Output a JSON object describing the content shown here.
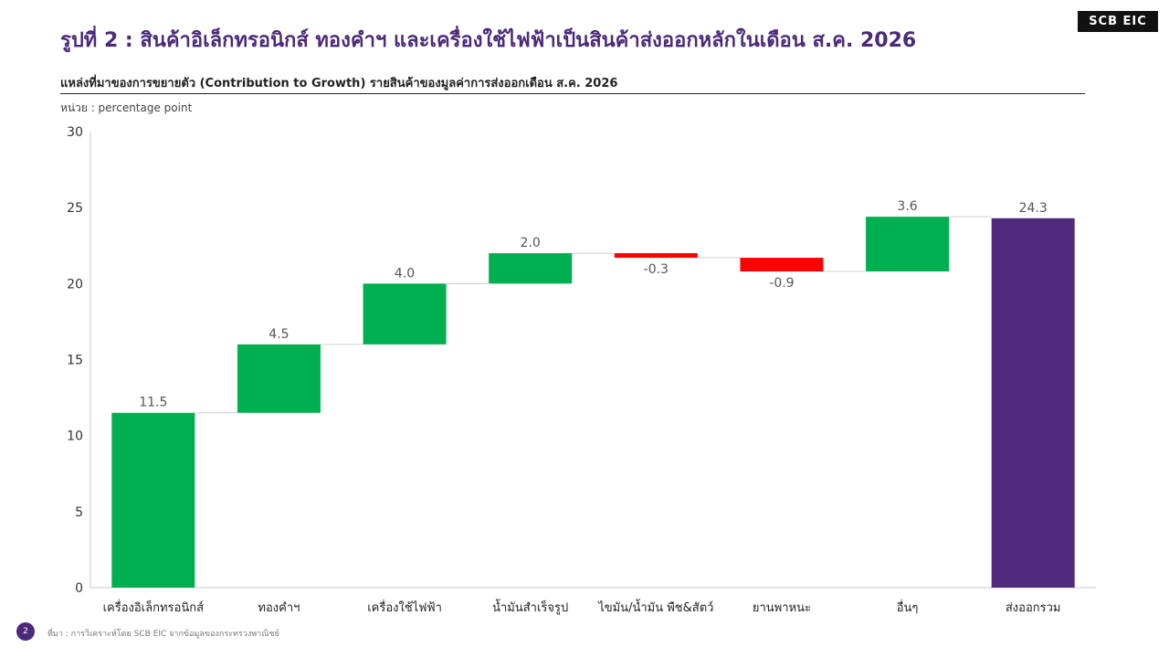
{
  "header": {
    "title": "รูปที่ 2 : สินค้าอิเล็กทรอนิกส์ ทองคำฯ และเครื่องใช้ไฟฟ้าเป็นสินค้าส่งออกหลักในเดือน ส.ค. 2026",
    "logo": "SCB EIC",
    "subtitle": "แหล่งที่มาของการขยายตัว (Contribution to Growth) รายสินค้าของมูลค่าการส่งออกเดือน ส.ค. 2026",
    "unit": "หน่วย : percentage point"
  },
  "chart_data": {
    "type": "bar",
    "subtype": "waterfall",
    "categories": [
      "เครื่องอิเล็กทรอนิกส์",
      "ทองคำฯ",
      "เครื่องใช้ไฟฟ้า",
      "น้ำมันสำเร็จรูป",
      "ไขมัน/น้ำมัน พืช&สัตว์",
      "ยานพาหนะ",
      "อื่นๆ",
      "ส่งออกรวม"
    ],
    "values": [
      11.5,
      4.5,
      4.0,
      2.0,
      -0.3,
      -0.9,
      3.6,
      24.3
    ],
    "value_labels": [
      "11.5",
      "4.5",
      "4.0",
      "2.0",
      "-0.3",
      "-0.9",
      "3.6",
      "24.3"
    ],
    "total_index": 7,
    "ylim": [
      0,
      30
    ],
    "yticks": [
      0,
      5,
      10,
      15,
      20,
      25,
      30
    ],
    "ytick_labels": [
      "0",
      "5",
      "10",
      "15",
      "20",
      "25",
      "30"
    ],
    "colors": {
      "positive": "#00b050",
      "negative": "#ff0000",
      "total": "#4f2a7d",
      "connector": "#d0d0d0"
    },
    "grid": false
  },
  "footer": {
    "page": "2",
    "source": "ที่มา : การวิเคราะห์โดย SCB EIC จากข้อมูลของกระทรวงพาณิชย์"
  }
}
